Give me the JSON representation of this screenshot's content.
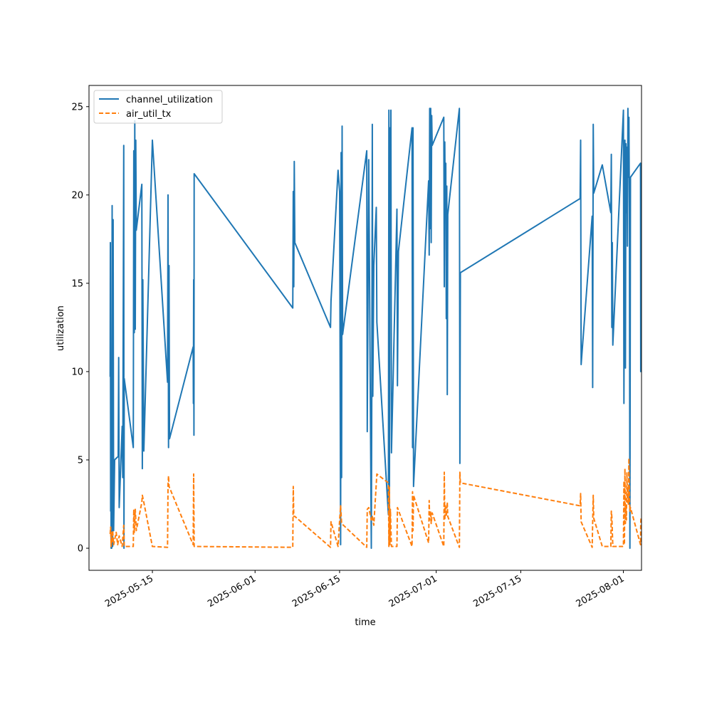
{
  "chart_data": {
    "type": "line",
    "title": "",
    "xlabel": "time",
    "ylabel": "utilization",
    "xlim": [
      "2025-05-04T12:00",
      "2025-08-04T00:00"
    ],
    "ylim": [
      -1.25,
      26.2
    ],
    "y_ticks": [
      0,
      5,
      10,
      15,
      20,
      25
    ],
    "x_ticks": [
      "2025-05-15",
      "2025-06-01",
      "2025-06-15",
      "2025-07-01",
      "2025-07-15",
      "2025-08-01"
    ],
    "grid": false,
    "legend": {
      "position": "top-left"
    },
    "series": [
      {
        "name": "channel_utilization",
        "color": "#1f77b4",
        "style": "solid",
        "points": [
          [
            "2025-05-08T00:00",
            9.7
          ],
          [
            "2025-05-08T01:00",
            17.3
          ],
          [
            "2025-05-08T02:00",
            2.1
          ],
          [
            "2025-05-08T03:00",
            6.4
          ],
          [
            "2025-05-08T04:00",
            0.0
          ],
          [
            "2025-05-08T05:00",
            5.6
          ],
          [
            "2025-05-08T06:00",
            0.0
          ],
          [
            "2025-05-08T08:00",
            19.4
          ],
          [
            "2025-05-08T10:00",
            0.1
          ],
          [
            "2025-05-08T12:00",
            18.6
          ],
          [
            "2025-05-08T14:00",
            1.0
          ],
          [
            "2025-05-08T18:00",
            5.0
          ],
          [
            "2025-05-09T08:00",
            5.2
          ],
          [
            "2025-05-09T10:00",
            10.8
          ],
          [
            "2025-05-09T12:00",
            2.3
          ],
          [
            "2025-05-10T00:00",
            6.9
          ],
          [
            "2025-05-10T02:00",
            4.0
          ],
          [
            "2025-05-10T06:00",
            22.8
          ],
          [
            "2025-05-10T07:00",
            0.0
          ],
          [
            "2025-05-10T08:00",
            9.6
          ],
          [
            "2025-05-11T20:00",
            5.7
          ],
          [
            "2025-05-11T22:00",
            22.5
          ],
          [
            "2025-05-12T00:00",
            12.2
          ],
          [
            "2025-05-12T02:00",
            24.2
          ],
          [
            "2025-05-12T04:00",
            12.4
          ],
          [
            "2025-05-12T06:00",
            23.1
          ],
          [
            "2025-05-12T08:00",
            18.0
          ],
          [
            "2025-05-13T06:00",
            20.6
          ],
          [
            "2025-05-13T08:00",
            4.5
          ],
          [
            "2025-05-13T10:00",
            15.2
          ],
          [
            "2025-05-13T14:00",
            5.5
          ],
          [
            "2025-05-15T00:00",
            23.1
          ],
          [
            "2025-05-17T12:00",
            9.4
          ],
          [
            "2025-05-17T14:00",
            20.0
          ],
          [
            "2025-05-17T16:00",
            5.7
          ],
          [
            "2025-05-17T18:00",
            16.0
          ],
          [
            "2025-05-17T20:00",
            6.2
          ],
          [
            "2025-05-21T18:00",
            11.4
          ],
          [
            "2025-05-21T19:00",
            8.2
          ],
          [
            "2025-05-21T20:00",
            15.2
          ],
          [
            "2025-05-21T21:00",
            6.4
          ],
          [
            "2025-05-21T22:00",
            21.2
          ],
          [
            "2025-06-07T06:00",
            13.6
          ],
          [
            "2025-06-07T08:00",
            20.2
          ],
          [
            "2025-06-07T10:00",
            14.8
          ],
          [
            "2025-06-07T12:00",
            21.9
          ],
          [
            "2025-06-07T14:00",
            17.3
          ],
          [
            "2025-06-13T12:00",
            12.5
          ],
          [
            "2025-06-13T14:00",
            14.0
          ],
          [
            "2025-06-14T18:00",
            21.4
          ],
          [
            "2025-06-15T00:00",
            20.2
          ],
          [
            "2025-06-15T04:00",
            0.2
          ],
          [
            "2025-06-15T06:00",
            22.4
          ],
          [
            "2025-06-15T08:00",
            4.0
          ],
          [
            "2025-06-15T10:00",
            23.9
          ],
          [
            "2025-06-15T12:00",
            12.1
          ],
          [
            "2025-06-19T12:00",
            22.5
          ],
          [
            "2025-06-19T14:00",
            6.6
          ],
          [
            "2025-06-19T20:00",
            22.0
          ],
          [
            "2025-06-20T06:00",
            0.0
          ],
          [
            "2025-06-20T08:00",
            9.1
          ],
          [
            "2025-06-20T10:00",
            24.0
          ],
          [
            "2025-06-20T12:00",
            8.6
          ],
          [
            "2025-06-20T16:00",
            16.0
          ],
          [
            "2025-06-21T02:00",
            19.3
          ],
          [
            "2025-06-21T04:00",
            12.8
          ],
          [
            "2025-06-23T02:00",
            1.9
          ],
          [
            "2025-06-23T04:00",
            24.8
          ],
          [
            "2025-06-23T06:00",
            0.2
          ],
          [
            "2025-06-23T08:00",
            23.8
          ],
          [
            "2025-06-23T10:00",
            17.0
          ],
          [
            "2025-06-23T12:00",
            24.8
          ],
          [
            "2025-06-23T14:00",
            5.4
          ],
          [
            "2025-06-24T12:00",
            19.2
          ],
          [
            "2025-06-24T14:00",
            9.2
          ],
          [
            "2025-06-24T18:00",
            16.8
          ],
          [
            "2025-06-27T00:00",
            23.8
          ],
          [
            "2025-06-27T02:00",
            5.7
          ],
          [
            "2025-06-27T04:00",
            23.8
          ],
          [
            "2025-06-27T06:00",
            3.5
          ],
          [
            "2025-06-29T18:00",
            20.8
          ],
          [
            "2025-06-29T20:00",
            16.6
          ],
          [
            "2025-06-29T22:00",
            24.9
          ],
          [
            "2025-06-30T00:00",
            18.1
          ],
          [
            "2025-06-30T02:00",
            24.9
          ],
          [
            "2025-06-30T04:00",
            17.3
          ],
          [
            "2025-06-30T06:00",
            24.5
          ],
          [
            "2025-06-30T08:00",
            22.8
          ],
          [
            "2025-07-02T06:00",
            24.4
          ],
          [
            "2025-07-02T08:00",
            14.8
          ],
          [
            "2025-07-02T10:00",
            23.0
          ],
          [
            "2025-07-02T12:00",
            19.0
          ],
          [
            "2025-07-02T14:00",
            21.8
          ],
          [
            "2025-07-02T16:00",
            13.0
          ],
          [
            "2025-07-02T18:00",
            20.5
          ],
          [
            "2025-07-02T20:00",
            8.7
          ],
          [
            "2025-07-02T22:00",
            18.9
          ],
          [
            "2025-07-04T20:00",
            24.9
          ],
          [
            "2025-07-04T22:00",
            4.8
          ],
          [
            "2025-07-05T00:00",
            15.6
          ],
          [
            "2025-07-24T20:00",
            19.8
          ],
          [
            "2025-07-24T22:00",
            23.1
          ],
          [
            "2025-07-25T00:00",
            10.4
          ],
          [
            "2025-07-26T20:00",
            18.8
          ],
          [
            "2025-07-26T22:00",
            9.1
          ],
          [
            "2025-07-27T00:00",
            24.0
          ],
          [
            "2025-07-27T02:00",
            20.1
          ],
          [
            "2025-07-28T12:00",
            21.7
          ],
          [
            "2025-07-29T22:00",
            19.0
          ],
          [
            "2025-07-30T00:00",
            22.3
          ],
          [
            "2025-07-30T02:00",
            12.5
          ],
          [
            "2025-07-30T04:00",
            17.3
          ],
          [
            "2025-07-30T06:00",
            11.5
          ],
          [
            "2025-08-01T00:00",
            24.8
          ],
          [
            "2025-08-01T02:00",
            8.2
          ],
          [
            "2025-08-01T04:00",
            17.4
          ],
          [
            "2025-08-01T06:00",
            23.1
          ],
          [
            "2025-08-01T08:00",
            10.2
          ],
          [
            "2025-08-01T10:00",
            22.9
          ],
          [
            "2025-08-01T12:00",
            19.0
          ],
          [
            "2025-08-01T14:00",
            22.7
          ],
          [
            "2025-08-01T16:00",
            17.1
          ],
          [
            "2025-08-01T18:00",
            24.9
          ],
          [
            "2025-08-01T20:00",
            21.0
          ],
          [
            "2025-08-01T22:00",
            24.4
          ],
          [
            "2025-08-02T00:00",
            19.2
          ],
          [
            "2025-08-02T02:00",
            0.0
          ],
          [
            "2025-08-02T04:00",
            21.0
          ],
          [
            "2025-08-03T20:00",
            21.8
          ],
          [
            "2025-08-03T21:00",
            10.0
          ],
          [
            "2025-08-03T22:00",
            14.0
          ]
        ]
      },
      {
        "name": "air_util_tx",
        "color": "#ff7f0e",
        "style": "dashed",
        "points": [
          [
            "2025-05-08T00:00",
            0.8
          ],
          [
            "2025-05-08T02:00",
            1.2
          ],
          [
            "2025-05-08T04:00",
            0.1
          ],
          [
            "2025-05-08T06:00",
            0.9
          ],
          [
            "2025-05-08T08:00",
            0.3
          ],
          [
            "2025-05-08T10:00",
            1.0
          ],
          [
            "2025-05-08T14:00",
            0.2
          ],
          [
            "2025-05-09T00:00",
            0.9
          ],
          [
            "2025-05-09T06:00",
            0.2
          ],
          [
            "2025-05-09T12:00",
            0.7
          ],
          [
            "2025-05-10T00:00",
            0.1
          ],
          [
            "2025-05-10T06:00",
            1.3
          ],
          [
            "2025-05-10T08:00",
            0.1
          ],
          [
            "2025-05-11T20:00",
            0.1
          ],
          [
            "2025-05-11T22:00",
            2.2
          ],
          [
            "2025-05-12T00:00",
            0.9
          ],
          [
            "2025-05-12T04:00",
            2.2
          ],
          [
            "2025-05-12T08:00",
            1.0
          ],
          [
            "2025-05-13T06:00",
            2.6
          ],
          [
            "2025-05-13T08:00",
            3.0
          ],
          [
            "2025-05-13T14:00",
            2.6
          ],
          [
            "2025-05-15T00:00",
            0.1
          ],
          [
            "2025-05-17T12:00",
            0.05
          ],
          [
            "2025-05-17T14:00",
            3.6
          ],
          [
            "2025-05-17T16:00",
            4.1
          ],
          [
            "2025-05-17T18:00",
            3.5
          ],
          [
            "2025-05-21T18:00",
            0.2
          ],
          [
            "2025-05-21T20:00",
            4.2
          ],
          [
            "2025-05-21T22:00",
            0.1
          ],
          [
            "2025-06-07T06:00",
            0.05
          ],
          [
            "2025-06-07T08:00",
            3.5
          ],
          [
            "2025-06-07T10:00",
            1.8
          ],
          [
            "2025-06-07T14:00",
            1.8
          ],
          [
            "2025-06-13T12:00",
            0.05
          ],
          [
            "2025-06-13T14:00",
            1.5
          ],
          [
            "2025-06-14T18:00",
            0.1
          ],
          [
            "2025-06-15T00:00",
            1.6
          ],
          [
            "2025-06-15T04:00",
            2.4
          ],
          [
            "2025-06-15T08:00",
            1.4
          ],
          [
            "2025-06-19T12:00",
            0.05
          ],
          [
            "2025-06-19T14:00",
            2.2
          ],
          [
            "2025-06-19T20:00",
            2.3
          ],
          [
            "2025-06-20T06:00",
            1.6
          ],
          [
            "2025-06-20T10:00",
            1.8
          ],
          [
            "2025-06-20T16:00",
            1.3
          ],
          [
            "2025-06-21T04:00",
            4.2
          ],
          [
            "2025-06-23T02:00",
            3.7
          ],
          [
            "2025-06-23T04:00",
            0.1
          ],
          [
            "2025-06-23T06:00",
            3.5
          ],
          [
            "2025-06-23T08:00",
            0.2
          ],
          [
            "2025-06-23T10:00",
            2.2
          ],
          [
            "2025-06-23T14:00",
            0.1
          ],
          [
            "2025-06-24T12:00",
            0.1
          ],
          [
            "2025-06-24T14:00",
            2.3
          ],
          [
            "2025-06-27T00:00",
            0.1
          ],
          [
            "2025-06-27T02:00",
            3.2
          ],
          [
            "2025-06-27T04:00",
            1.0
          ],
          [
            "2025-06-27T06:00",
            3.0
          ],
          [
            "2025-06-29T18:00",
            0.3
          ],
          [
            "2025-06-29T20:00",
            2.7
          ],
          [
            "2025-06-29T22:00",
            1.6
          ],
          [
            "2025-06-30T02:00",
            2.1
          ],
          [
            "2025-06-30T04:00",
            1.4
          ],
          [
            "2025-06-30T08:00",
            2.0
          ],
          [
            "2025-07-02T06:00",
            0.1
          ],
          [
            "2025-07-02T08:00",
            4.3
          ],
          [
            "2025-07-02T10:00",
            1.6
          ],
          [
            "2025-07-02T12:00",
            2.4
          ],
          [
            "2025-07-02T16:00",
            1.8
          ],
          [
            "2025-07-02T20:00",
            2.6
          ],
          [
            "2025-07-02T22:00",
            1.8
          ],
          [
            "2025-07-04T20:00",
            0.05
          ],
          [
            "2025-07-04T22:00",
            4.3
          ],
          [
            "2025-07-05T00:00",
            3.7
          ],
          [
            "2025-07-24T20:00",
            2.4
          ],
          [
            "2025-07-24T22:00",
            3.1
          ],
          [
            "2025-07-25T00:00",
            1.5
          ],
          [
            "2025-07-26T20:00",
            0.05
          ],
          [
            "2025-07-27T00:00",
            3.0
          ],
          [
            "2025-07-27T02:00",
            1.7
          ],
          [
            "2025-07-28T12:00",
            0.1
          ],
          [
            "2025-07-29T22:00",
            0.1
          ],
          [
            "2025-07-30T00:00",
            2.1
          ],
          [
            "2025-07-30T02:00",
            1.8
          ],
          [
            "2025-07-30T06:00",
            0.1
          ],
          [
            "2025-08-01T00:00",
            0.1
          ],
          [
            "2025-08-01T02:00",
            3.8
          ],
          [
            "2025-08-01T04:00",
            0.2
          ],
          [
            "2025-08-01T06:00",
            4.5
          ],
          [
            "2025-08-01T08:00",
            1.4
          ],
          [
            "2025-08-01T10:00",
            2.4
          ],
          [
            "2025-08-01T12:00",
            1.6
          ],
          [
            "2025-08-01T14:00",
            4.3
          ],
          [
            "2025-08-01T16:00",
            2.6
          ],
          [
            "2025-08-01T18:00",
            3.5
          ],
          [
            "2025-08-01T20:00",
            2.5
          ],
          [
            "2025-08-01T22:00",
            5.1
          ],
          [
            "2025-08-02T00:00",
            2.8
          ],
          [
            "2025-08-02T02:00",
            2.1
          ],
          [
            "2025-08-02T04:00",
            2.3
          ],
          [
            "2025-08-03T20:00",
            0.2
          ],
          [
            "2025-08-03T21:00",
            1.4
          ],
          [
            "2025-08-03T22:00",
            1.7
          ]
        ]
      }
    ]
  }
}
